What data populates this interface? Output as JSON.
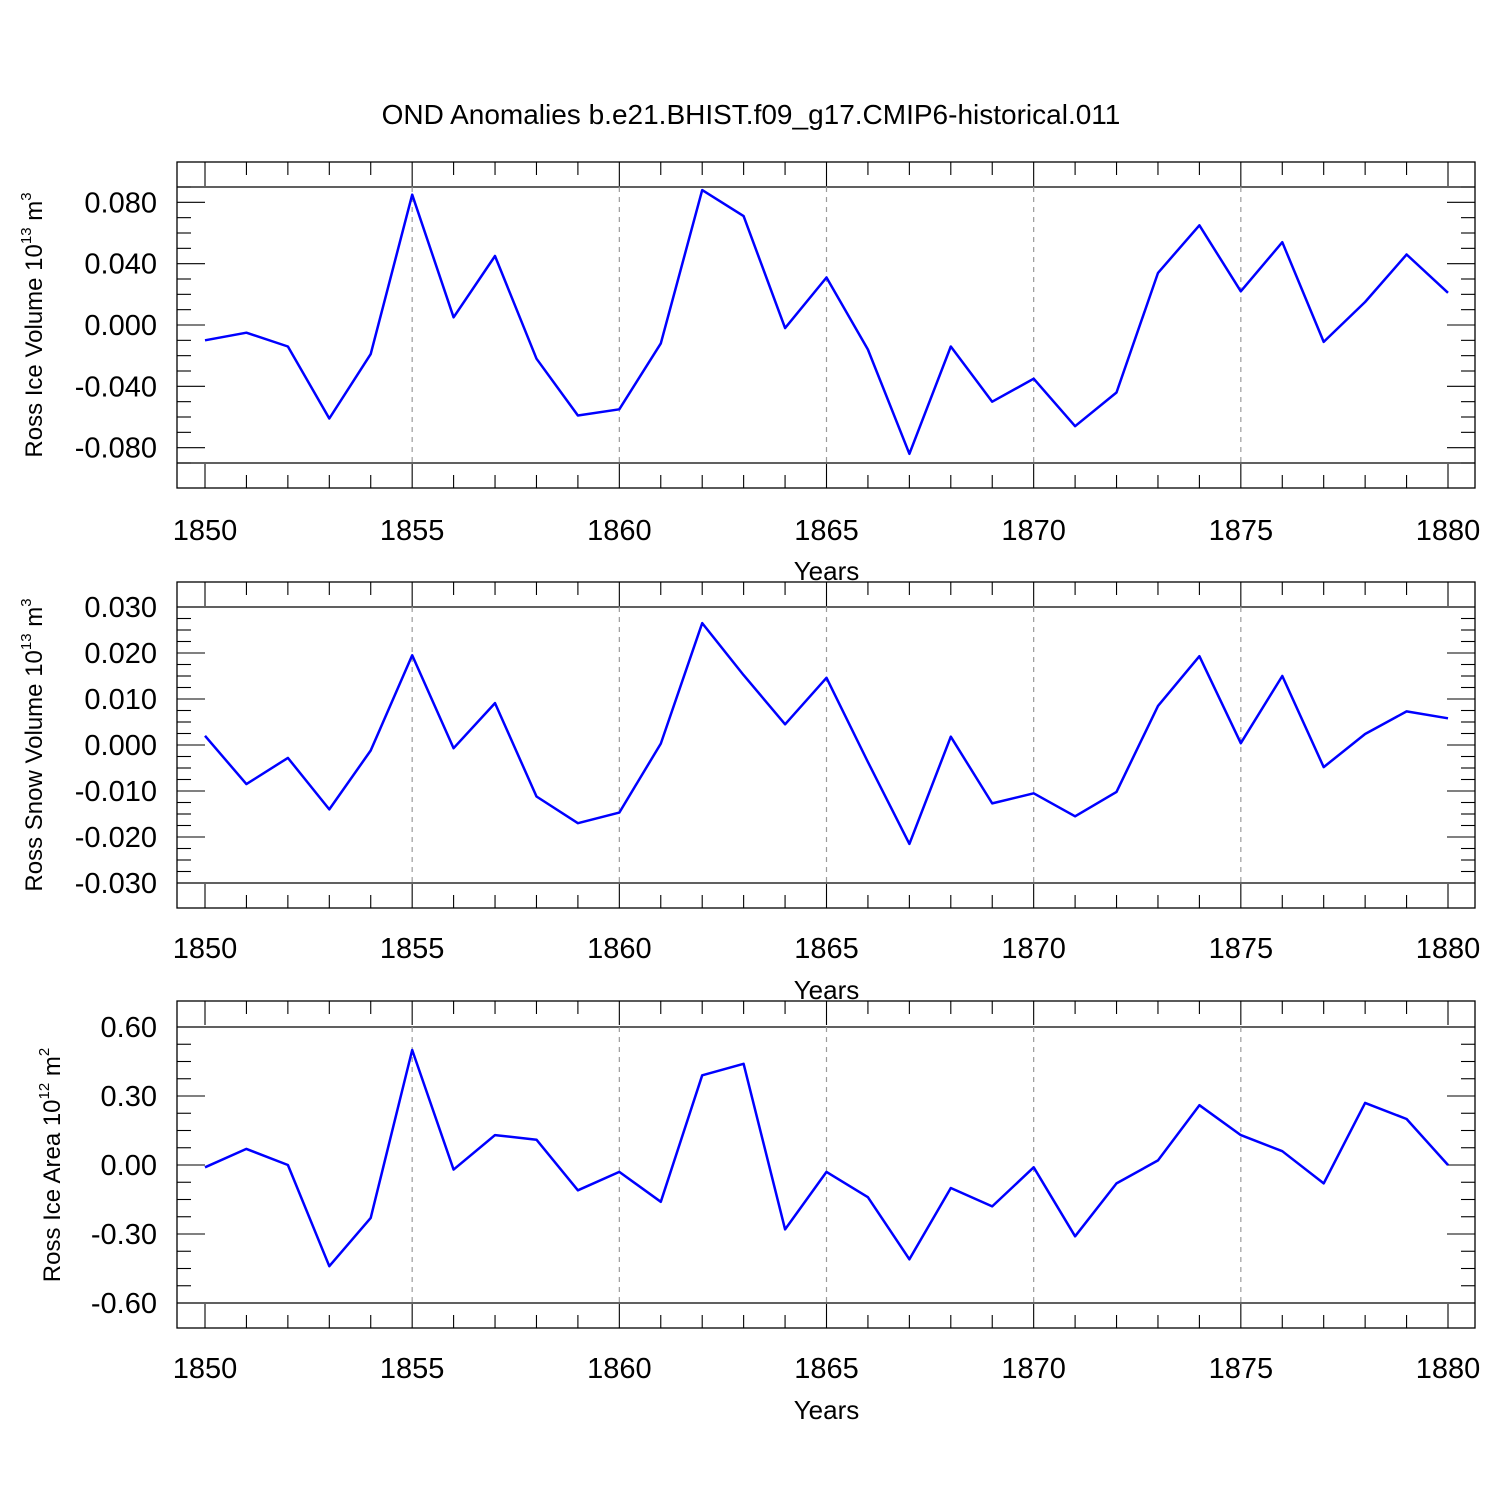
{
  "title": "OND Anomalies b.e21.BHIST.f09_g17.CMIP6-historical.011",
  "colors": {
    "series": "#0000ff",
    "grid": "#9a9a9a",
    "axis": "#000000"
  },
  "chart_data": [
    {
      "type": "line",
      "title": "OND Anomalies b.e21.BHIST.f09_g17.CMIP6-historical.011",
      "xlabel": "Years",
      "ylabel": {
        "text": "Ross Ice Volume 10",
        "sup": "13",
        "unit": " m",
        "unit_sup": "3"
      },
      "xlim": [
        1850,
        1880
      ],
      "ylim": [
        -0.09,
        0.09
      ],
      "yticks": [
        -0.08,
        -0.04,
        0.0,
        0.04,
        0.08
      ],
      "ytick_labels": [
        "-0.080",
        "-0.040",
        "0.000",
        "0.040",
        "0.080"
      ],
      "xticks": [
        1850,
        1855,
        1860,
        1865,
        1870,
        1875,
        1880
      ],
      "xtick_labels": [
        "1850",
        "1855",
        "1860",
        "1865",
        "1870",
        "1875",
        "1880"
      ],
      "grid": "dashed vertical at major x ticks",
      "x": [
        1850,
        1851,
        1852,
        1853,
        1854,
        1855,
        1856,
        1857,
        1858,
        1859,
        1860,
        1861,
        1862,
        1863,
        1864,
        1865,
        1866,
        1867,
        1868,
        1869,
        1870,
        1871,
        1872,
        1873,
        1874,
        1875,
        1876,
        1877,
        1878,
        1879,
        1880
      ],
      "series": [
        {
          "name": "Ross Ice Volume",
          "values": [
            -0.01,
            -0.005,
            -0.014,
            -0.061,
            -0.019,
            0.085,
            0.005,
            0.045,
            -0.022,
            -0.059,
            -0.055,
            -0.012,
            0.088,
            0.071,
            -0.002,
            0.031,
            -0.016,
            -0.084,
            -0.014,
            -0.05,
            -0.035,
            -0.066,
            -0.044,
            0.034,
            0.065,
            0.022,
            0.054,
            -0.011,
            0.015,
            0.046,
            0.021
          ]
        }
      ]
    },
    {
      "type": "line",
      "xlabel": "Years",
      "ylabel": {
        "text": "Ross Snow Volume 10",
        "sup": "13",
        "unit": " m",
        "unit_sup": "3"
      },
      "xlim": [
        1850,
        1880
      ],
      "ylim": [
        -0.03,
        0.03
      ],
      "yticks": [
        -0.03,
        -0.02,
        -0.01,
        0.0,
        0.01,
        0.02,
        0.03
      ],
      "ytick_labels": [
        "-0.030",
        "-0.020",
        "-0.010",
        "0.000",
        "0.010",
        "0.020",
        "0.030"
      ],
      "xticks": [
        1850,
        1855,
        1860,
        1865,
        1870,
        1875,
        1880
      ],
      "xtick_labels": [
        "1850",
        "1855",
        "1860",
        "1865",
        "1870",
        "1875",
        "1880"
      ],
      "grid": "dashed vertical at major x ticks",
      "x": [
        1850,
        1851,
        1852,
        1853,
        1854,
        1855,
        1856,
        1857,
        1858,
        1859,
        1860,
        1861,
        1862,
        1863,
        1864,
        1865,
        1866,
        1867,
        1868,
        1869,
        1870,
        1871,
        1872,
        1873,
        1874,
        1875,
        1876,
        1877,
        1878,
        1879,
        1880
      ],
      "series": [
        {
          "name": "Ross Snow Volume",
          "values": [
            0.002,
            -0.0085,
            -0.0028,
            -0.014,
            -0.0012,
            0.0195,
            -0.0007,
            0.0091,
            -0.0112,
            -0.017,
            -0.0147,
            0.0003,
            0.0265,
            0.0152,
            0.0045,
            0.0146,
            -0.0037,
            -0.0215,
            0.0018,
            -0.0127,
            -0.0105,
            -0.0155,
            -0.0102,
            0.0085,
            0.0193,
            0.0004,
            0.015,
            -0.0048,
            0.0024,
            0.0073,
            0.0058
          ]
        }
      ]
    },
    {
      "type": "line",
      "xlabel": "Years",
      "ylabel": {
        "text": "Ross Ice Area 10",
        "sup": "12",
        "unit": " m",
        "unit_sup": "2"
      },
      "xlim": [
        1850,
        1880
      ],
      "ylim": [
        -0.6,
        0.6
      ],
      "yticks": [
        -0.6,
        -0.3,
        0.0,
        0.3,
        0.6
      ],
      "ytick_labels": [
        "-0.60",
        "-0.30",
        "0.00",
        "0.30",
        "0.60"
      ],
      "xticks": [
        1850,
        1855,
        1860,
        1865,
        1870,
        1875,
        1880
      ],
      "xtick_labels": [
        "1850",
        "1855",
        "1860",
        "1865",
        "1870",
        "1875",
        "1880"
      ],
      "grid": "dashed vertical at major x ticks",
      "x": [
        1850,
        1851,
        1852,
        1853,
        1854,
        1855,
        1856,
        1857,
        1858,
        1859,
        1860,
        1861,
        1862,
        1863,
        1864,
        1865,
        1866,
        1867,
        1868,
        1869,
        1870,
        1871,
        1872,
        1873,
        1874,
        1875,
        1876,
        1877,
        1878,
        1879,
        1880
      ],
      "series": [
        {
          "name": "Ross Ice Area",
          "values": [
            -0.01,
            0.07,
            0.0,
            -0.44,
            -0.23,
            0.5,
            -0.02,
            0.13,
            0.11,
            -0.11,
            -0.03,
            -0.16,
            0.39,
            0.44,
            -0.28,
            -0.03,
            -0.14,
            -0.41,
            -0.1,
            -0.18,
            -0.01,
            -0.31,
            -0.08,
            0.02,
            0.26,
            0.13,
            0.06,
            -0.08,
            0.27,
            0.2,
            0.0
          ]
        }
      ]
    }
  ]
}
